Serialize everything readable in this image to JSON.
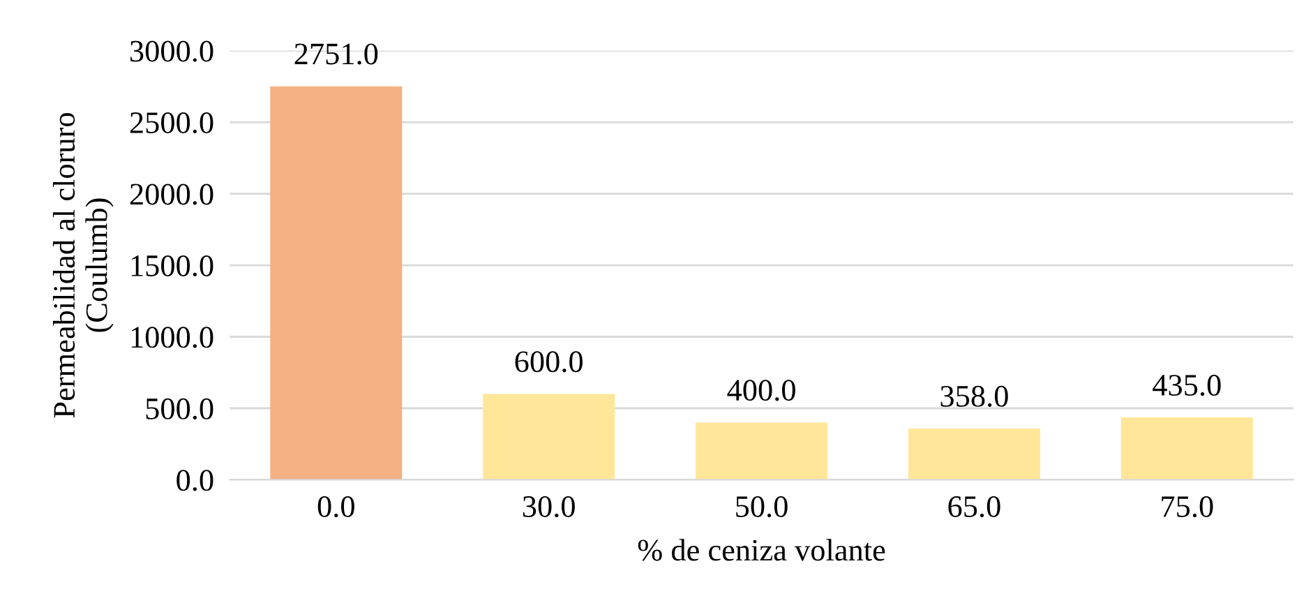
{
  "chart_data": {
    "type": "bar",
    "xlabel": "% de ceniza volante",
    "ylabel": "Permeabilidad al cloruro\n(Coulumb)",
    "categories": [
      "0.0",
      "30.0",
      "50.0",
      "65.0",
      "75.0"
    ],
    "values": [
      2751.0,
      600.0,
      400.0,
      358.0,
      435.0
    ],
    "value_labels": [
      "2751.0",
      "600.0",
      "400.0",
      "358.0",
      "435.0"
    ],
    "colors": [
      "#f4b183",
      "#ffe699",
      "#ffe699",
      "#ffe699",
      "#ffe699"
    ],
    "ylim": [
      0,
      3000
    ],
    "yticks": [
      {
        "value": 0,
        "label": "0.0"
      },
      {
        "value": 500,
        "label": "500.0"
      },
      {
        "value": 1000,
        "label": "1000.0"
      },
      {
        "value": 1500,
        "label": "1500.0"
      },
      {
        "value": 2000,
        "label": "2000.0"
      },
      {
        "value": 2500,
        "label": "2500.0"
      },
      {
        "value": 3000,
        "label": "3000.0"
      }
    ],
    "grid": "y",
    "legend": false
  }
}
